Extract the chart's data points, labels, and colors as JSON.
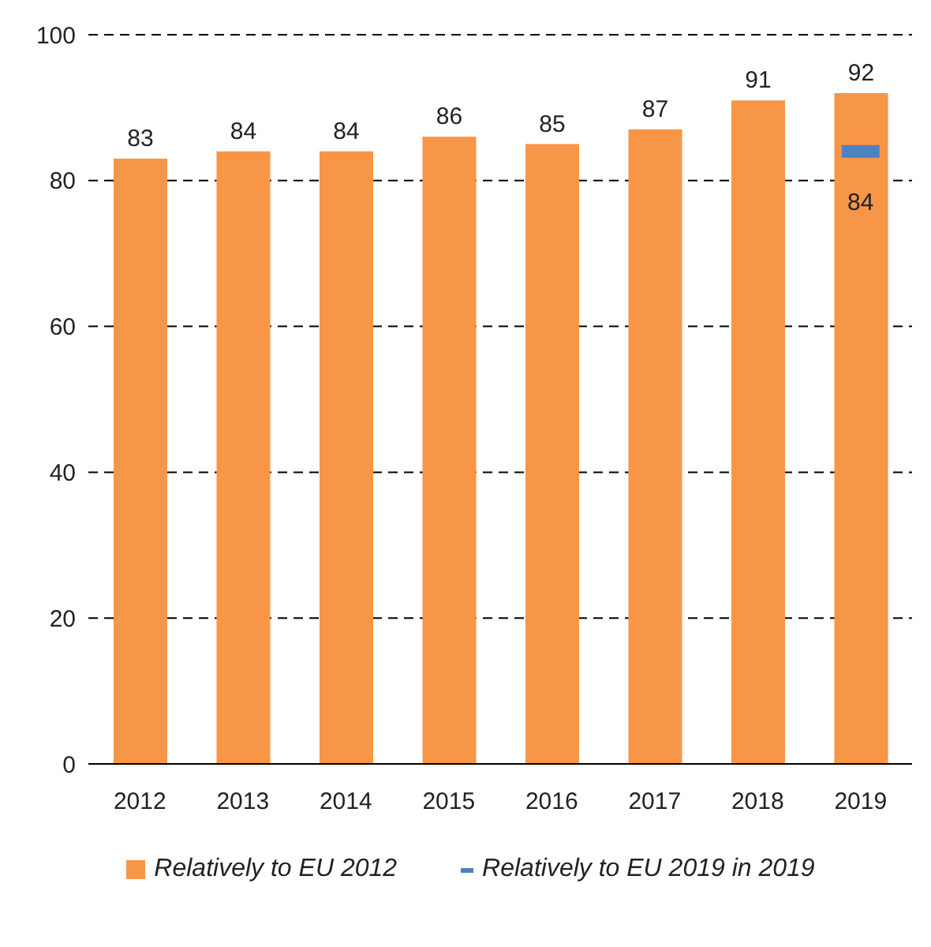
{
  "chart_data": {
    "type": "bar",
    "categories": [
      "2012",
      "2013",
      "2014",
      "2015",
      "2016",
      "2017",
      "2018",
      "2019"
    ],
    "series": [
      {
        "name": "Relatively to EU 2012",
        "color": "#f79646",
        "values": [
          83,
          84,
          84,
          86,
          85,
          87,
          91,
          92
        ]
      },
      {
        "name": "Relatively to EU 2019 in 2019",
        "type": "scatter",
        "color": "#4f81bd",
        "values": [
          null,
          null,
          null,
          null,
          null,
          null,
          null,
          84
        ]
      }
    ],
    "ylim": [
      0,
      100
    ],
    "yticks": [
      0,
      20,
      40,
      60,
      80,
      100
    ],
    "grid": "y",
    "data_labels": true,
    "legend": "bottom"
  }
}
